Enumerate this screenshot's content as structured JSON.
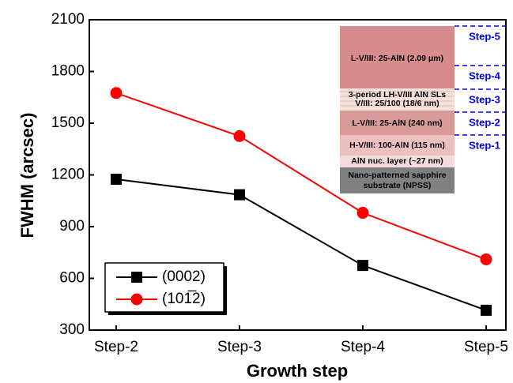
{
  "chart_data": {
    "type": "line",
    "x_label": "Growth step",
    "y_label": "FWHM (arcsec)",
    "categories": [
      "Step-2",
      "Step-3",
      "Step-4",
      "Step-5"
    ],
    "series": [
      {
        "name": "(0002)",
        "color": "#000000",
        "marker": "square",
        "values": [
          1175,
          1085,
          675,
          415
        ]
      },
      {
        "name": "(101̅2)",
        "color": "#ff0000",
        "marker": "circle",
        "values": [
          1675,
          1425,
          980,
          710
        ]
      }
    ],
    "ylim": [
      300,
      2100
    ],
    "yticks": [
      300,
      600,
      900,
      1200,
      1500,
      1800,
      2100
    ],
    "legend": "lower-left",
    "inset": {
      "layers": [
        {
          "lines": [
            "L-V/III: 25-AlN (2.09 μm)"
          ]
        },
        {
          "lines": [
            "3-period LH-V/III AlN SLs",
            "V/III: 25/100 (18/6 nm)"
          ]
        },
        {
          "lines": [
            "L-V/III: 25-AlN (240 nm)"
          ]
        },
        {
          "lines": [
            "H-V/III: 100-AlN (115 nm)"
          ]
        },
        {
          "lines": [
            "AlN nuc. layer (~27 nm)"
          ]
        },
        {
          "lines": [
            "Nano-patterned sapphire",
            "substrate (NPSS)"
          ]
        }
      ],
      "steps": [
        "Step-5",
        "Step-4",
        "Step-3",
        "Step-2",
        "Step-1"
      ]
    }
  }
}
